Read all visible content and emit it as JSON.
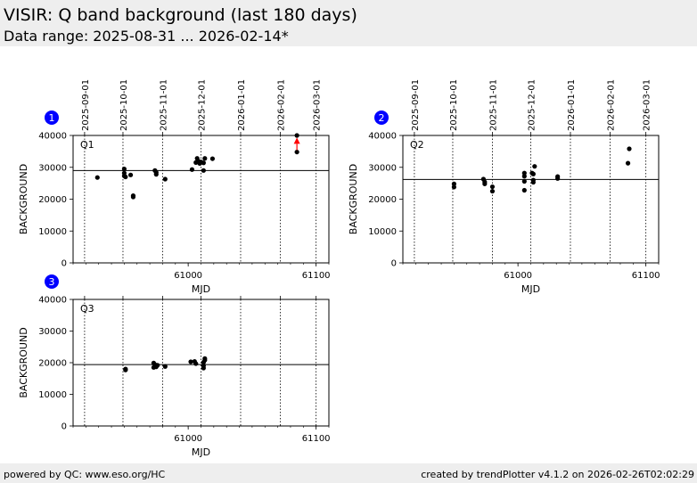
{
  "header": {
    "title": "VISIR: Q band background (last 180 days)",
    "subtitle": "Data range: 2025-08-31 ... 2026-02-14*"
  },
  "footer": {
    "left": "powered by QC: www.eso.org/HC",
    "right": "created by trendPlotter v4.1.2 on 2026-02-26T02:02:29"
  },
  "colors": {
    "point": "#000000",
    "outlier": "#ff0000",
    "badge": "#0000ff"
  },
  "chart_data": [
    {
      "type": "scatter",
      "badge": "1",
      "panel_label": "Q1",
      "xlabel": "MJD",
      "ylabel": "BACKGROUND",
      "xlim": [
        60910,
        61110
      ],
      "ylim": [
        0,
        40000
      ],
      "x_ticks": [
        61000,
        61100
      ],
      "y_ticks": [
        0,
        10000,
        20000,
        30000,
        40000
      ],
      "date_ticks": [
        {
          "label": "2025-09-01",
          "mjd": 60919
        },
        {
          "label": "2025-10-01",
          "mjd": 60949
        },
        {
          "label": "2025-11-01",
          "mjd": 60980
        },
        {
          "label": "2025-12-01",
          "mjd": 61010
        },
        {
          "label": "2026-01-01",
          "mjd": 61041
        },
        {
          "label": "2026-02-01",
          "mjd": 61072
        },
        {
          "label": "2026-03-01",
          "mjd": 61100
        }
      ],
      "reference_line": 29000,
      "points": [
        [
          60929,
          26800
        ],
        [
          60950,
          29500
        ],
        [
          60950,
          28200
        ],
        [
          60950,
          27300
        ],
        [
          60951,
          27000
        ],
        [
          60955,
          27600
        ],
        [
          60957,
          20700
        ],
        [
          60957,
          21100
        ],
        [
          60974,
          29000
        ],
        [
          60975,
          28400
        ],
        [
          60975,
          27800
        ],
        [
          60982,
          26300
        ],
        [
          61003,
          29300
        ],
        [
          61006,
          31500
        ],
        [
          61007,
          32800
        ],
        [
          61008,
          31900
        ],
        [
          61009,
          31200
        ],
        [
          61010,
          31700
        ],
        [
          61012,
          29000
        ],
        [
          61012,
          31400
        ],
        [
          61013,
          32800
        ],
        [
          61019,
          32700
        ],
        [
          61085,
          34800
        ],
        [
          61085,
          40000
        ]
      ],
      "outliers": [
        [
          61085,
          38200
        ]
      ]
    },
    {
      "type": "scatter",
      "badge": "2",
      "panel_label": "Q2",
      "xlabel": "MJD",
      "ylabel": "BACKGROUND",
      "xlim": [
        60910,
        61110
      ],
      "ylim": [
        0,
        40000
      ],
      "x_ticks": [
        61000,
        61100
      ],
      "y_ticks": [
        0,
        10000,
        20000,
        30000,
        40000
      ],
      "date_ticks": [
        {
          "label": "2025-09-01",
          "mjd": 60919
        },
        {
          "label": "2025-10-01",
          "mjd": 60949
        },
        {
          "label": "2025-11-01",
          "mjd": 60980
        },
        {
          "label": "2025-12-01",
          "mjd": 61010
        },
        {
          "label": "2026-01-01",
          "mjd": 61041
        },
        {
          "label": "2026-02-01",
          "mjd": 61072
        },
        {
          "label": "2026-03-01",
          "mjd": 61100
        }
      ],
      "reference_line": 26200,
      "points": [
        [
          60950,
          24800
        ],
        [
          60950,
          23800
        ],
        [
          60973,
          26300
        ],
        [
          60974,
          25400
        ],
        [
          60974,
          24800
        ],
        [
          60980,
          22500
        ],
        [
          60980,
          23900
        ],
        [
          61005,
          22800
        ],
        [
          61005,
          25600
        ],
        [
          61005,
          27200
        ],
        [
          61005,
          28200
        ],
        [
          61011,
          28200
        ],
        [
          61012,
          27900
        ],
        [
          61012,
          25300
        ],
        [
          61012,
          26000
        ],
        [
          61013,
          30300
        ],
        [
          61031,
          26500
        ],
        [
          61031,
          27100
        ],
        [
          61086,
          31300
        ],
        [
          61087,
          35800
        ]
      ],
      "outliers": []
    },
    {
      "type": "scatter",
      "badge": "3",
      "panel_label": "Q3",
      "xlabel": "MJD",
      "ylabel": "BACKGROUND",
      "xlim": [
        60910,
        61110
      ],
      "ylim": [
        0,
        40000
      ],
      "x_ticks": [
        61000,
        61100
      ],
      "y_ticks": [
        0,
        10000,
        20000,
        30000,
        40000
      ],
      "date_ticks": [
        {
          "label": "",
          "mjd": 60919
        },
        {
          "label": "",
          "mjd": 60949
        },
        {
          "label": "",
          "mjd": 60980
        },
        {
          "label": "",
          "mjd": 61010
        },
        {
          "label": "",
          "mjd": 61041
        },
        {
          "label": "",
          "mjd": 61072
        },
        {
          "label": "",
          "mjd": 61100
        }
      ],
      "reference_line": 19400,
      "points": [
        [
          60951,
          18000
        ],
        [
          60951,
          17700
        ],
        [
          60973,
          18500
        ],
        [
          60973,
          19900
        ],
        [
          60974,
          19400
        ],
        [
          60975,
          18700
        ],
        [
          60976,
          19200
        ],
        [
          60982,
          18800
        ],
        [
          61002,
          20300
        ],
        [
          61005,
          20400
        ],
        [
          61006,
          19700
        ],
        [
          61012,
          18300
        ],
        [
          61012,
          19000
        ],
        [
          61012,
          20100
        ],
        [
          61013,
          21300
        ],
        [
          61013,
          20800
        ]
      ],
      "outliers": []
    }
  ]
}
